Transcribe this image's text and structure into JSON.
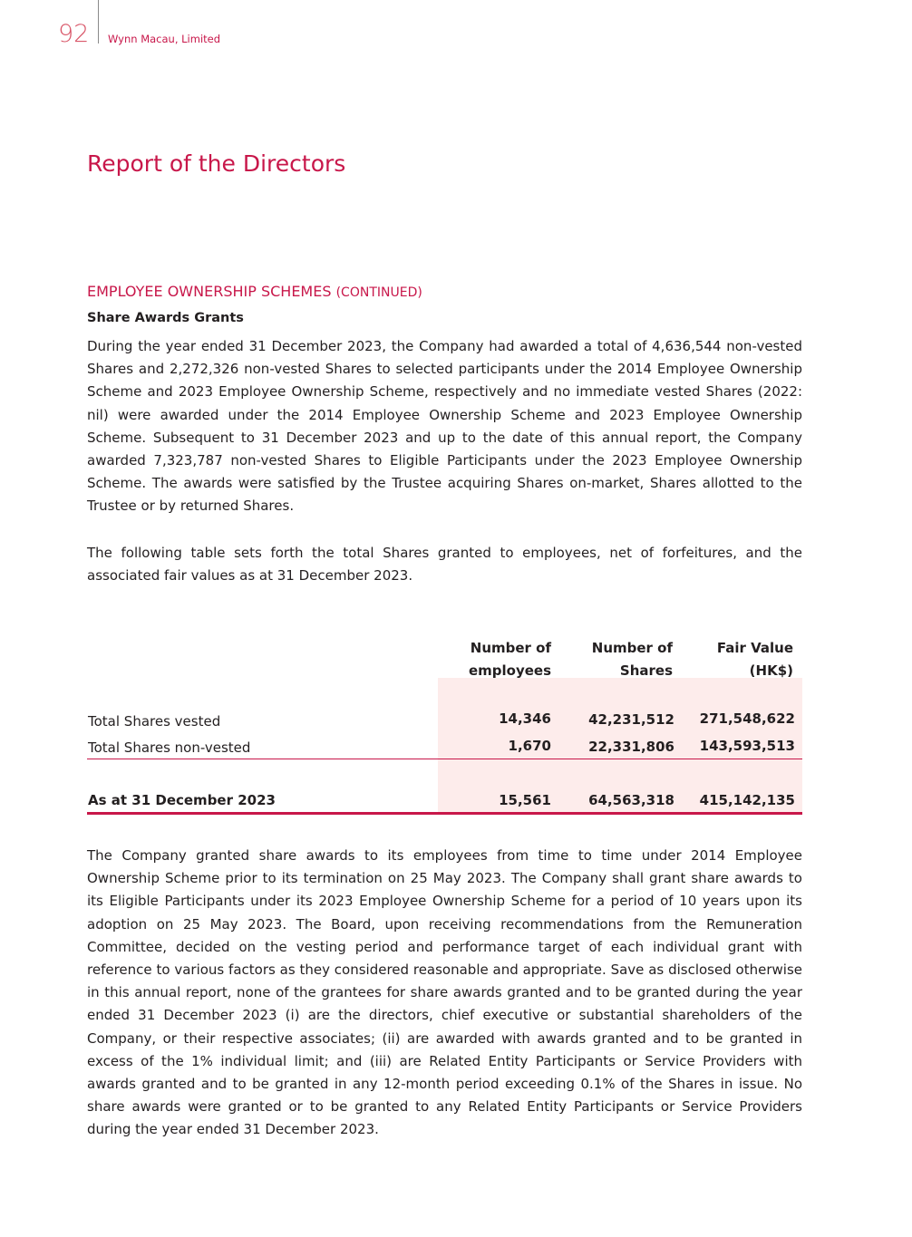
{
  "header": {
    "page_number": "92",
    "company": "Wynn Macau, Limited"
  },
  "title": "Report of the Directors",
  "section": {
    "heading": "EMPLOYEE OWNERSHIP SCHEMES",
    "heading_suffix": "(CONTINUED)",
    "subheading": "Share Awards Grants"
  },
  "paragraphs": [
    "During the year ended 31 December 2023, the Company had awarded a total of 4,636,544 non-vested Shares and 2,272,326 non-vested Shares to selected participants under the 2014 Employee Ownership Scheme and 2023 Employee Ownership Scheme, respectively and no immediate vested Shares (2022: nil) were awarded under the 2014 Employee Ownership Scheme and 2023 Employee Ownership Scheme. Subsequent to 31 December 2023 and up to the date of this annual report, the Company awarded 7,323,787 non-vested Shares to Eligible Participants under the 2023 Employee Ownership Scheme. The awards were satisfied by the Trustee acquiring Shares on-market, Shares allotted to the Trustee or by returned Shares.",
    "The following table sets forth the total Shares granted to employees, net of forfeitures, and the associated fair values as at 31 December 2023.",
    "The Company granted share awards to its employees from time to time under 2014 Employee Ownership Scheme prior to its termination on 25 May 2023. The Company shall grant share awards to its Eligible Participants under its 2023 Employee Ownership Scheme for a period of 10 years upon its adoption on 25 May 2023. The Board, upon receiving recommendations from the Remuneration Committee, decided on the vesting period and performance target of each individual grant with reference to various factors as they considered reasonable and appropriate. Save as disclosed otherwise in this annual report, none of the grantees for share awards granted and to be granted during the year ended 31 December 2023 (i) are the directors, chief executive or substantial shareholders of the Company, or their respective associates; (ii) are awarded with awards granted and to be granted in excess of the 1% individual limit; and (iii) are Related Entity Participants or Service Providers with awards granted and to be granted in any 12-month period exceeding 0.1% of the Shares in issue. No share awards were granted or to be granted to any Related Entity Participants or Service Providers during the year ended 31 December 2023."
  ],
  "table": {
    "columns": [
      {
        "line1": "Number of",
        "line2": "employees"
      },
      {
        "line1": "Number of",
        "line2": "Shares"
      },
      {
        "line1": "Fair Value",
        "line2": "(HK$)"
      }
    ],
    "rows": [
      {
        "label": "Total Shares vested",
        "values": [
          "14,346",
          "42,231,512",
          "271,548,622"
        ]
      },
      {
        "label": "Total Shares non-vested",
        "values": [
          "1,670",
          "22,331,806",
          "143,593,513"
        ]
      }
    ],
    "total": {
      "label": "As at 31 December 2023",
      "values": [
        "15,561",
        "64,563,318",
        "415,142,135"
      ]
    }
  },
  "colors": {
    "accent": "#c8174a",
    "shade": "#fdeceb"
  }
}
